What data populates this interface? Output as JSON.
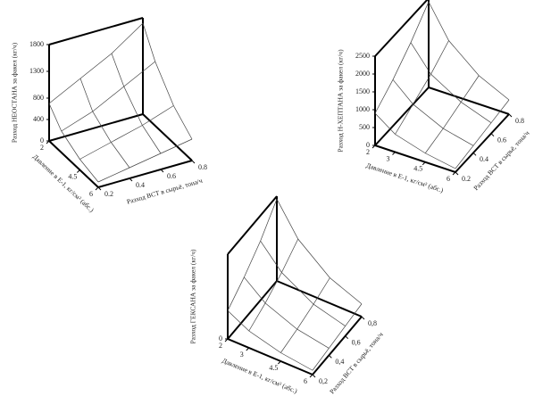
{
  "chart_data": [
    {
      "type": "surface",
      "z_label": "Разход НЕОСТАНА за факел (кг/ч)",
      "x_label": "Давление в Е-1, кг/см² (абс.)",
      "y_label": "Разход ВСТ в сырьё, тона/ч",
      "x": [
        2,
        3,
        4.5,
        6
      ],
      "y": [
        0.2,
        0.4,
        0.6,
        0.8
      ],
      "z": [
        [
          700,
          1000,
          1300,
          1700
        ],
        [
          400,
          600,
          900,
          1200
        ],
        [
          200,
          350,
          500,
          700
        ],
        [
          100,
          200,
          300,
          400
        ]
      ],
      "xlim": [
        2,
        6
      ],
      "xticks": [
        2,
        4.5,
        6
      ],
      "ylim": [
        0.2,
        0.8
      ],
      "yticks": [
        0.2,
        0.4,
        0.6,
        0.8
      ],
      "zlim": [
        0,
        1800
      ],
      "zticks": [
        0,
        400,
        800,
        1300,
        1800
      ]
    },
    {
      "type": "surface",
      "z_label": "Разход Н-ХЕПТАНА за факел (кг/ч)",
      "x_label": "Давление в Е-1, кг/см² (абс.)",
      "y_label": "Разход ВСТ в сырьё, тона/ч",
      "x": [
        2,
        3,
        4.5,
        6
      ],
      "y": [
        0.2,
        0.4,
        0.6,
        0.8
      ],
      "z": [
        [
          900,
          1300,
          1800,
          2400
        ],
        [
          500,
          800,
          1100,
          1500
        ],
        [
          250,
          400,
          600,
          800
        ],
        [
          100,
          200,
          300,
          400
        ]
      ],
      "xlim": [
        2,
        6
      ],
      "xticks": [
        2,
        3,
        4.5,
        6
      ],
      "ylim": [
        0.2,
        0.8
      ],
      "yticks": [
        0.2,
        0.4,
        0.6,
        0.8
      ],
      "zlim": [
        0,
        2500
      ],
      "zticks": [
        0,
        500,
        1000,
        1500,
        2000,
        2500
      ]
    },
    {
      "type": "surface",
      "z_label": "Разход ГЕКСАНА за факел (кг/ч)",
      "x_label": "Давление в Е-1, кг/см² (абс.)",
      "y_label": "Разход ВСТ в сырьё, тона/ч",
      "x": [
        2,
        3,
        4.5,
        6
      ],
      "y": [
        0.2,
        0.4,
        0.6,
        0.8
      ],
      "z": [
        [
          1000,
          1500,
          2100,
          2900
        ],
        [
          600,
          900,
          1300,
          1800
        ],
        [
          300,
          450,
          650,
          900
        ],
        [
          150,
          250,
          350,
          450
        ]
      ],
      "xlim": [
        2,
        6
      ],
      "xticks": [
        2,
        3,
        4.5,
        6
      ],
      "ylim": [
        0.2,
        0.8
      ],
      "yticks": [
        {
          "value": 0.2,
          "label": "0,2"
        },
        {
          "value": 0.4,
          "label": "0,4"
        },
        {
          "value": 0.6,
          "label": "0,6"
        },
        {
          "value": 0.8,
          "label": "0,8"
        }
      ],
      "zlim": [
        0,
        3000
      ],
      "zticks": [
        0
      ]
    }
  ]
}
